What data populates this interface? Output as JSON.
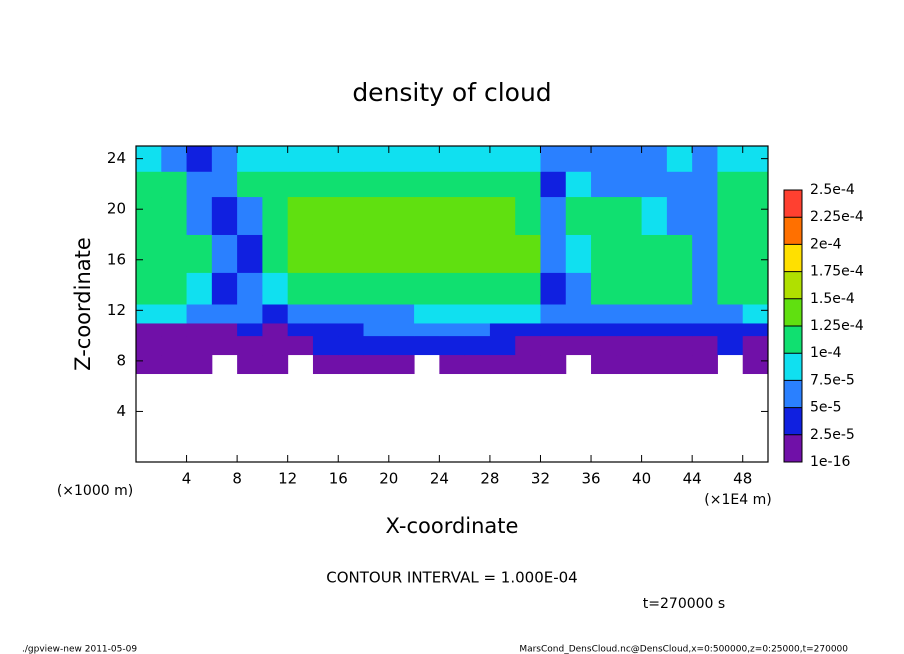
{
  "chart_data": {
    "type": "heatmap",
    "title": "density of cloud",
    "x_label": "X-coordinate",
    "y_label": "Z-coordinate",
    "x_unit": "(×1E4 m)",
    "y_unit": "(×1000 m)",
    "note": "CONTOUR INTERVAL = 1.000E-04",
    "time_label": "t=270000 s",
    "footer_left": "./gpview-new  2011-05-09",
    "footer_right": "MarsCond_DensCloud.nc@DensCloud,x=0:500000,z=0:25000,t=270000",
    "xlim": [
      0,
      50
    ],
    "ylim": [
      0,
      25
    ],
    "xticks": [
      4,
      8,
      12,
      16,
      20,
      24,
      28,
      32,
      36,
      40,
      44,
      48
    ],
    "yticks": [
      4,
      8,
      12,
      16,
      20,
      24
    ],
    "xbins": [
      0,
      2,
      4,
      6,
      8,
      10,
      12,
      14,
      16,
      18,
      20,
      22,
      24,
      26,
      28,
      30,
      32,
      34,
      36,
      38,
      40,
      42,
      44,
      46,
      48,
      50
    ],
    "ybins": [
      7,
      8.5,
      10,
      11,
      12.5,
      15,
      18,
      21,
      23,
      25
    ],
    "values": [
      [
        1e-05,
        1e-05,
        1e-05,
        null,
        1e-05,
        1e-05,
        null,
        1e-05,
        1e-05,
        1e-05,
        1e-05,
        null,
        1e-05,
        1e-05,
        1e-05,
        1e-05,
        1e-05,
        null,
        1e-05,
        1e-05,
        1e-05,
        1e-05,
        1e-05,
        null,
        1e-05
      ],
      [
        1.5e-05,
        1.5e-05,
        2e-05,
        1e-05,
        1.5e-05,
        1e-05,
        2e-05,
        3e-05,
        3e-05,
        3e-05,
        3e-05,
        3e-05,
        3e-05,
        2.5e-05,
        2.5e-05,
        2e-05,
        2e-05,
        2e-05,
        2e-05,
        2e-05,
        2e-05,
        1.5e-05,
        2e-05,
        2.5e-05,
        2e-05
      ],
      [
        2e-05,
        1.5e-05,
        2e-05,
        2e-05,
        3e-05,
        2e-05,
        3e-05,
        4e-05,
        4.5e-05,
        5e-05,
        5e-05,
        5e-05,
        5e-05,
        5e-05,
        4.5e-05,
        4e-05,
        4e-05,
        4e-05,
        4e-05,
        3.5e-05,
        3.5e-05,
        3.5e-05,
        4e-05,
        4.5e-05,
        4e-05
      ],
      [
        8e-05,
        8e-05,
        7e-05,
        6e-05,
        5e-05,
        3e-05,
        6e-05,
        6.5e-05,
        7e-05,
        7e-05,
        7e-05,
        7.5e-05,
        8e-05,
        8e-05,
        8e-05,
        8e-05,
        5e-05,
        6e-05,
        7e-05,
        7e-05,
        7e-05,
        6e-05,
        6e-05,
        7e-05,
        8e-05
      ],
      [
        0.00011,
        0.00011,
        8e-05,
        4e-05,
        5e-05,
        9e-05,
        0.00011,
        0.000115,
        0.000115,
        0.000115,
        0.000115,
        0.000115,
        0.000115,
        0.000115,
        0.000115,
        0.000105,
        4e-05,
        5e-05,
        0.00011,
        0.00011,
        0.00011,
        0.00011,
        5e-05,
        0.00011,
        0.00011
      ],
      [
        0.00012,
        0.00012,
        0.0001,
        5e-05,
        4e-05,
        0.00011,
        0.00013,
        0.000135,
        0.000135,
        0.000135,
        0.00013,
        0.00013,
        0.00013,
        0.00013,
        0.00013,
        0.000125,
        6e-05,
        8e-05,
        0.00012,
        0.00012,
        0.00012,
        0.00011,
        7e-05,
        0.000115,
        0.00012
      ],
      [
        0.00012,
        0.00012,
        6e-05,
        3e-05,
        6e-05,
        0.00012,
        0.00013,
        0.00013,
        0.00013,
        0.00013,
        0.00013,
        0.00013,
        0.00013,
        0.00013,
        0.00013,
        0.00012,
        5e-05,
        0.0001,
        0.00012,
        0.00011,
        8e-05,
        7e-05,
        7e-05,
        0.000115,
        0.00012
      ],
      [
        0.00011,
        0.00011,
        5e-05,
        5e-05,
        0.0001,
        0.000115,
        0.00012,
        0.00012,
        0.00012,
        0.00012,
        0.00012,
        0.00012,
        0.00012,
        0.00012,
        0.00012,
        0.00011,
        4e-05,
        8e-05,
        6e-05,
        7e-05,
        7e-05,
        6e-05,
        6e-05,
        0.000105,
        0.00011
      ],
      [
        8e-05,
        7e-05,
        4e-05,
        5e-05,
        8e-05,
        8e-05,
        8e-05,
        8e-05,
        8e-05,
        8e-05,
        8e-05,
        8e-05,
        8e-05,
        8e-05,
        8e-05,
        8e-05,
        7e-05,
        7e-05,
        6e-05,
        7e-05,
        7e-05,
        8e-05,
        7e-05,
        8e-05,
        8e-05
      ]
    ],
    "colorbar": {
      "ticks": [
        {
          "value": 1e-16,
          "label": "1e-16"
        },
        {
          "value": 2.5e-05,
          "label": "2.5e-5"
        },
        {
          "value": 5e-05,
          "label": "5e-5"
        },
        {
          "value": 7.5e-05,
          "label": "7.5e-5"
        },
        {
          "value": 0.0001,
          "label": "1e-4"
        },
        {
          "value": 0.000125,
          "label": "1.25e-4"
        },
        {
          "value": 0.00015,
          "label": "1.5e-4"
        },
        {
          "value": 0.000175,
          "label": "1.75e-4"
        },
        {
          "value": 0.0002,
          "label": "2e-4"
        },
        {
          "value": 0.000225,
          "label": "2.25e-4"
        },
        {
          "value": 0.00025,
          "label": "2.5e-4"
        }
      ],
      "colors": [
        "#7010a8",
        "#1020e0",
        "#2a80ff",
        "#10e0f0",
        "#10e070",
        "#60e010",
        "#b0e000",
        "#ffe000",
        "#ff7000",
        "#ff4030"
      ]
    }
  }
}
